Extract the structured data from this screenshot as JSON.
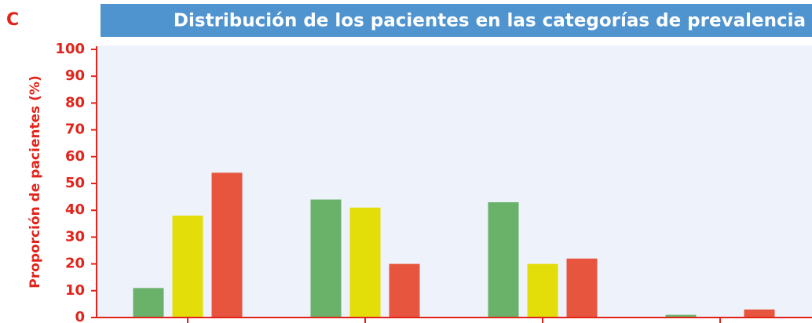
{
  "chart_data": {
    "type": "bar",
    "panel_label": "C",
    "title": "Distribución de los pacientes en las categorías de prevalencia",
    "y_label": "Proporción de pacientes (%)",
    "categories": [
      null,
      null,
      null,
      null
    ],
    "series": [
      {
        "color": "#6ab26a",
        "values": [
          11,
          44,
          43,
          1
        ]
      },
      {
        "color": "#e3dd0a",
        "values": [
          38,
          41,
          20,
          0
        ]
      },
      {
        "color": "#e8553f",
        "values": [
          54,
          20,
          22,
          3
        ]
      }
    ],
    "ylim": [
      0,
      100
    ],
    "yticks": [
      0,
      10,
      20,
      30,
      40,
      50,
      60,
      70,
      80,
      90,
      100
    ]
  }
}
